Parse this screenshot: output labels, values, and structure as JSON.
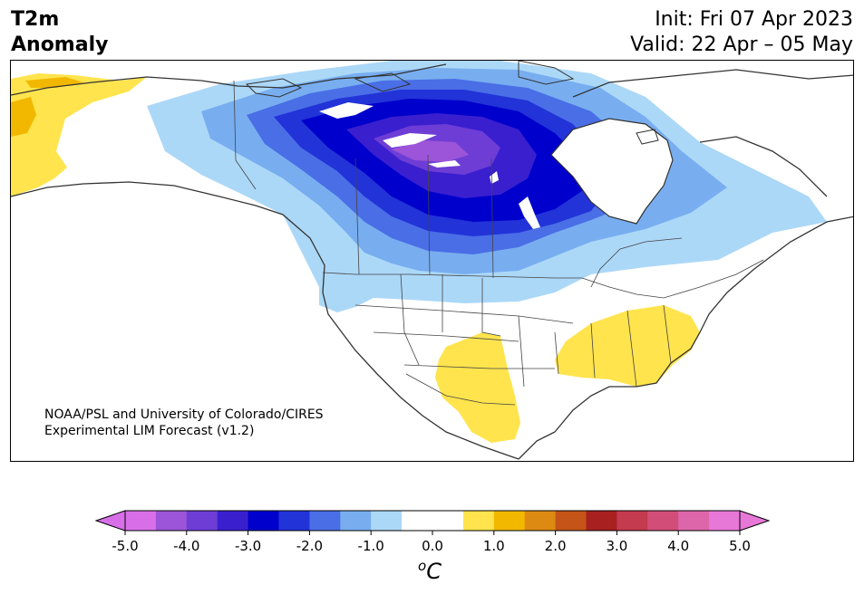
{
  "header": {
    "title_line1": "T2m",
    "title_line2": "Anomaly",
    "init": "Init: Fri 07 Apr 2023",
    "valid": "Valid: 22 Apr – 05 May"
  },
  "credit": {
    "line1": "NOAA/PSL and University of Colorado/CIRES",
    "line2": "Experimental LIM Forecast (v1.2)"
  },
  "colorbar": {
    "unit_base": "C",
    "unit_sup": "o",
    "ticks": [
      "-5.0",
      "-4.0",
      "-3.0",
      "-2.0",
      "-1.0",
      "0.0",
      "1.0",
      "2.0",
      "3.0",
      "4.0",
      "5.0"
    ],
    "colors": [
      "#d86fe8",
      "#9c55d8",
      "#6e3dd6",
      "#3a1fcf",
      "#0000cc",
      "#2233d8",
      "#4a6ee6",
      "#78aef0",
      "#acd8f8",
      "#ffffff",
      "#ffffff",
      "#ffe44d",
      "#f2b800",
      "#dd8a12",
      "#c45418",
      "#a82020",
      "#c43a4e",
      "#d24e78",
      "#dd66aa",
      "#e878d8"
    ],
    "under_color": "#d86fe8",
    "over_color": "#e878d8"
  },
  "map": {
    "ocean": "#ffffff",
    "land": "#ffffff",
    "boundary_color": "#333333",
    "lake_color": "#ffffff"
  }
}
